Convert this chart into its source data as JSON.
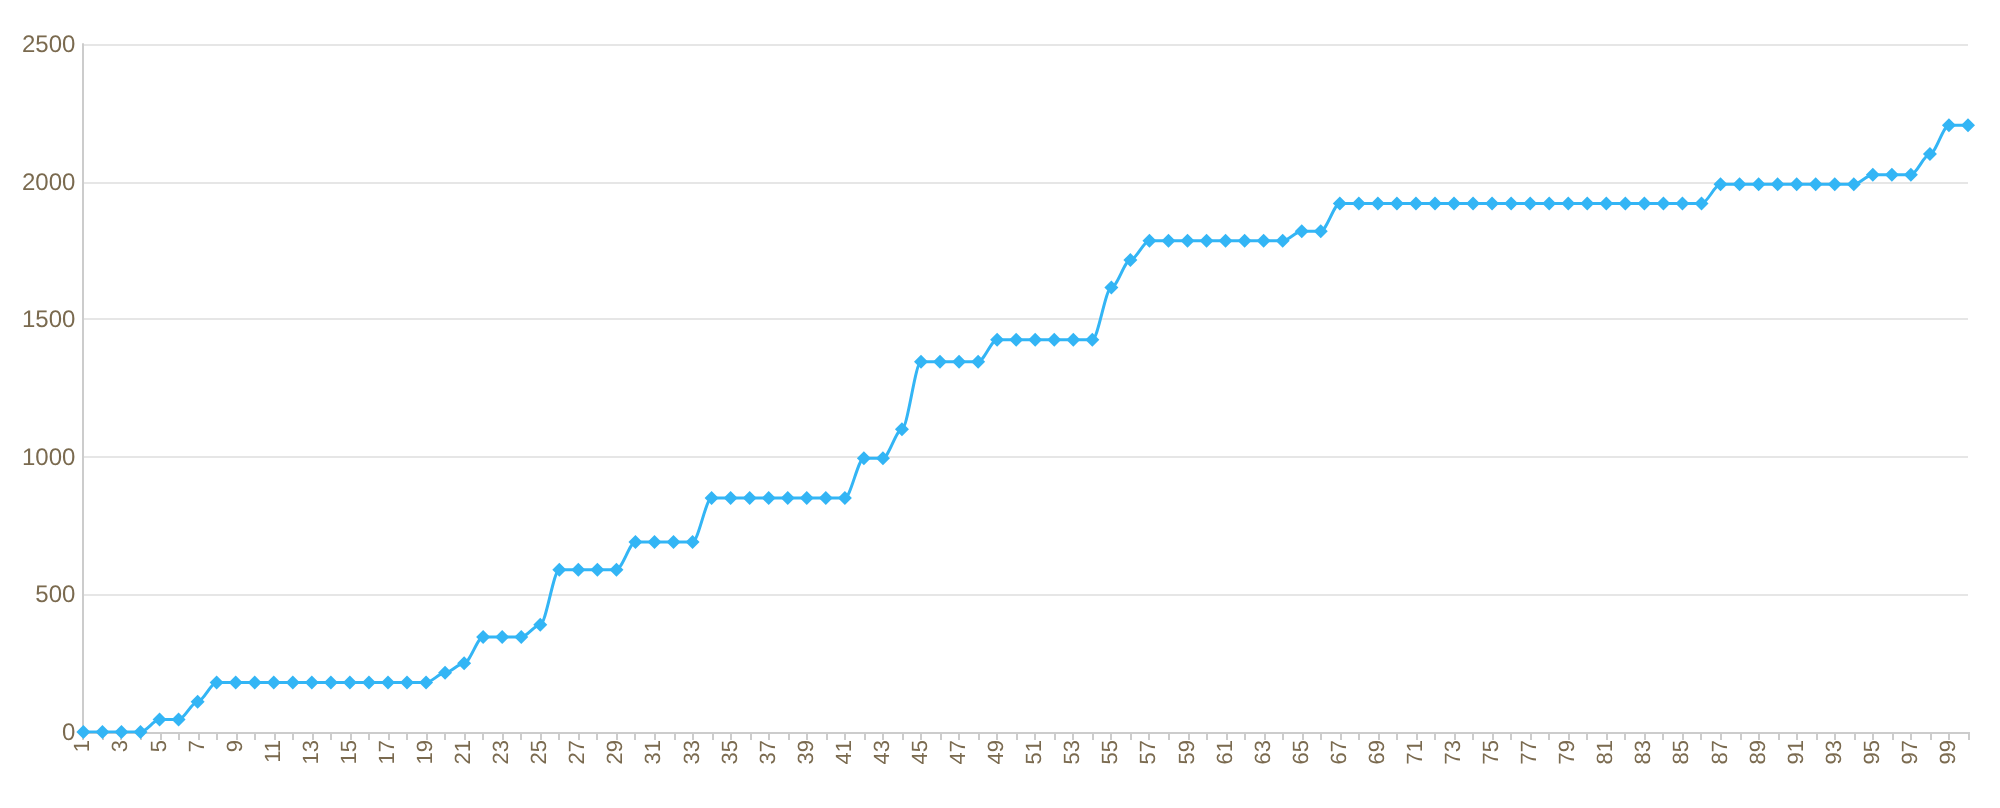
{
  "chart_data": {
    "type": "line",
    "categories": [
      "1",
      null,
      "3",
      null,
      "5",
      null,
      "7",
      null,
      "9",
      null,
      "11",
      null,
      "13",
      null,
      "15",
      null,
      "17",
      null,
      "19",
      null,
      "21",
      null,
      "23",
      null,
      "25",
      null,
      "27",
      null,
      "29",
      null,
      "31",
      null,
      "33",
      null,
      "35",
      null,
      "37",
      null,
      "39",
      null,
      "41",
      null,
      "43",
      null,
      "45",
      null,
      "47",
      null,
      "49",
      null,
      "51",
      null,
      "53",
      null,
      "55",
      null,
      "57",
      null,
      "59",
      null,
      "61",
      null,
      "63",
      null,
      "65",
      null,
      "67",
      null,
      "69",
      null,
      "71",
      null,
      "73",
      null,
      "75",
      null,
      "77",
      null,
      "79",
      null,
      "81",
      null,
      "83",
      null,
      "85",
      null,
      "87",
      null,
      "89",
      null,
      "91",
      null,
      "93",
      null,
      "95",
      null,
      "97",
      null,
      "99",
      null
    ],
    "series": [
      {
        "color": "#33b5f5",
        "values": [
          0,
          0,
          0,
          0,
          45,
          45,
          110,
          180,
          180,
          180,
          180,
          180,
          180,
          180,
          180,
          180,
          180,
          180,
          180,
          215,
          250,
          345,
          345,
          345,
          390,
          590,
          590,
          590,
          590,
          690,
          690,
          690,
          690,
          850,
          850,
          850,
          850,
          850,
          850,
          850,
          850,
          995,
          995,
          1100,
          1345,
          1345,
          1345,
          1345,
          1425,
          1425,
          1425,
          1425,
          1425,
          1425,
          1615,
          1715,
          1785,
          1785,
          1785,
          1785,
          1785,
          1785,
          1785,
          1785,
          1820,
          1820,
          1920,
          1920,
          1920,
          1920,
          1920,
          1920,
          1920,
          1920,
          1920,
          1920,
          1920,
          1920,
          1920,
          1920,
          1920,
          1920,
          1920,
          1920,
          1920,
          1920,
          1990,
          1990,
          1990,
          1990,
          1990,
          1990,
          1990,
          1990,
          2025,
          2025,
          2025,
          2100,
          2205,
          2205
        ]
      }
    ],
    "ylim": [
      0,
      2500
    ],
    "yticks": [
      0,
      500,
      1000,
      1500,
      2000,
      2500
    ],
    "grid": "y",
    "marker": "diamond",
    "line_style": "solid"
  }
}
